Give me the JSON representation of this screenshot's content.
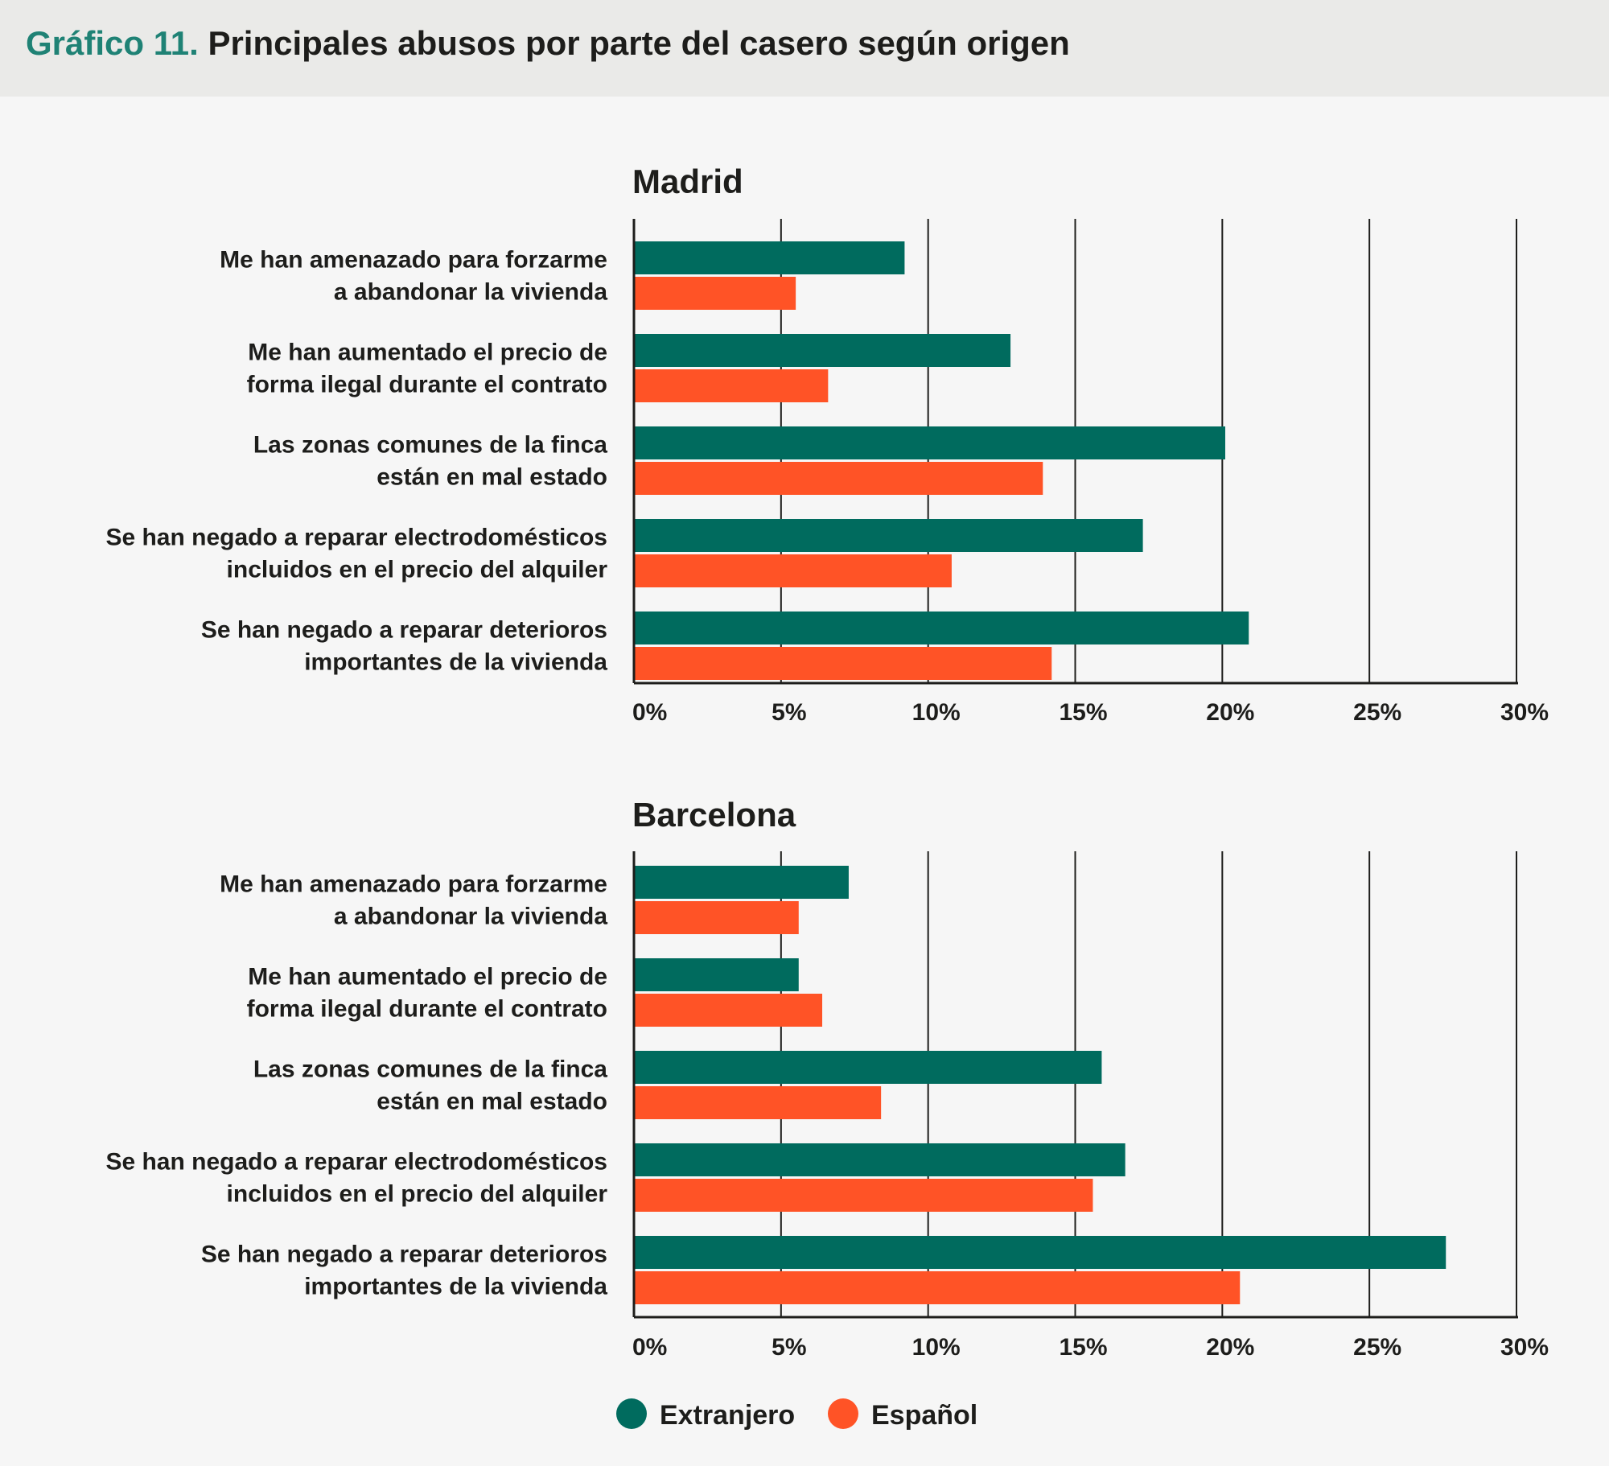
{
  "header": {
    "number": "Gráfico 11.",
    "title": "Principales abusos por parte del casero según origen"
  },
  "colors": {
    "extranjero": "#006b5e",
    "espanol": "#ff5326",
    "grid": "#1d1d1b"
  },
  "legend": {
    "items": [
      {
        "label": "Extranjero",
        "color": "#006b5e"
      },
      {
        "label": "Español",
        "color": "#ff5326"
      }
    ]
  },
  "chart_data": [
    {
      "type": "bar",
      "orientation": "horizontal",
      "title": "Madrid",
      "categories": [
        [
          "Me han amenazado para forzarme",
          "a abandonar la vivienda"
        ],
        [
          "Me han aumentado el precio de",
          "forma ilegal durante el contrato"
        ],
        [
          "Las zonas comunes de la finca",
          "están en mal estado"
        ],
        [
          "Se han negado a reparar electrodomésticos",
          "incluidos en el precio del alquiler"
        ],
        [
          "Se han negado a reparar deterioros",
          "importantes de la vivienda"
        ]
      ],
      "series": [
        {
          "name": "Extranjero",
          "values": [
            9.2,
            12.8,
            20.1,
            17.3,
            20.9
          ]
        },
        {
          "name": "Español",
          "values": [
            5.5,
            6.6,
            13.9,
            10.8,
            14.2
          ]
        }
      ],
      "xlim": [
        0,
        30
      ],
      "ticks": [
        "0%",
        "5%",
        "10%",
        "15%",
        "20%",
        "25%",
        "30%"
      ],
      "grid": true
    },
    {
      "type": "bar",
      "orientation": "horizontal",
      "title": "Barcelona",
      "categories": [
        [
          "Me han amenazado para forzarme",
          "a abandonar la vivienda"
        ],
        [
          "Me han aumentado el precio de",
          "forma ilegal durante el contrato"
        ],
        [
          "Las zonas comunes de la finca",
          "están en mal estado"
        ],
        [
          "Se han negado a reparar electrodomésticos",
          "incluidos en el precio del alquiler"
        ],
        [
          "Se han negado a reparar deterioros",
          "importantes de la vivienda"
        ]
      ],
      "series": [
        {
          "name": "Extranjero",
          "values": [
            7.3,
            5.6,
            15.9,
            16.7,
            27.6
          ]
        },
        {
          "name": "Español",
          "values": [
            5.6,
            6.4,
            8.4,
            15.6,
            20.6
          ]
        }
      ],
      "xlim": [
        0,
        30
      ],
      "ticks": [
        "0%",
        "5%",
        "10%",
        "15%",
        "20%",
        "25%",
        "30%"
      ],
      "grid": true
    }
  ]
}
